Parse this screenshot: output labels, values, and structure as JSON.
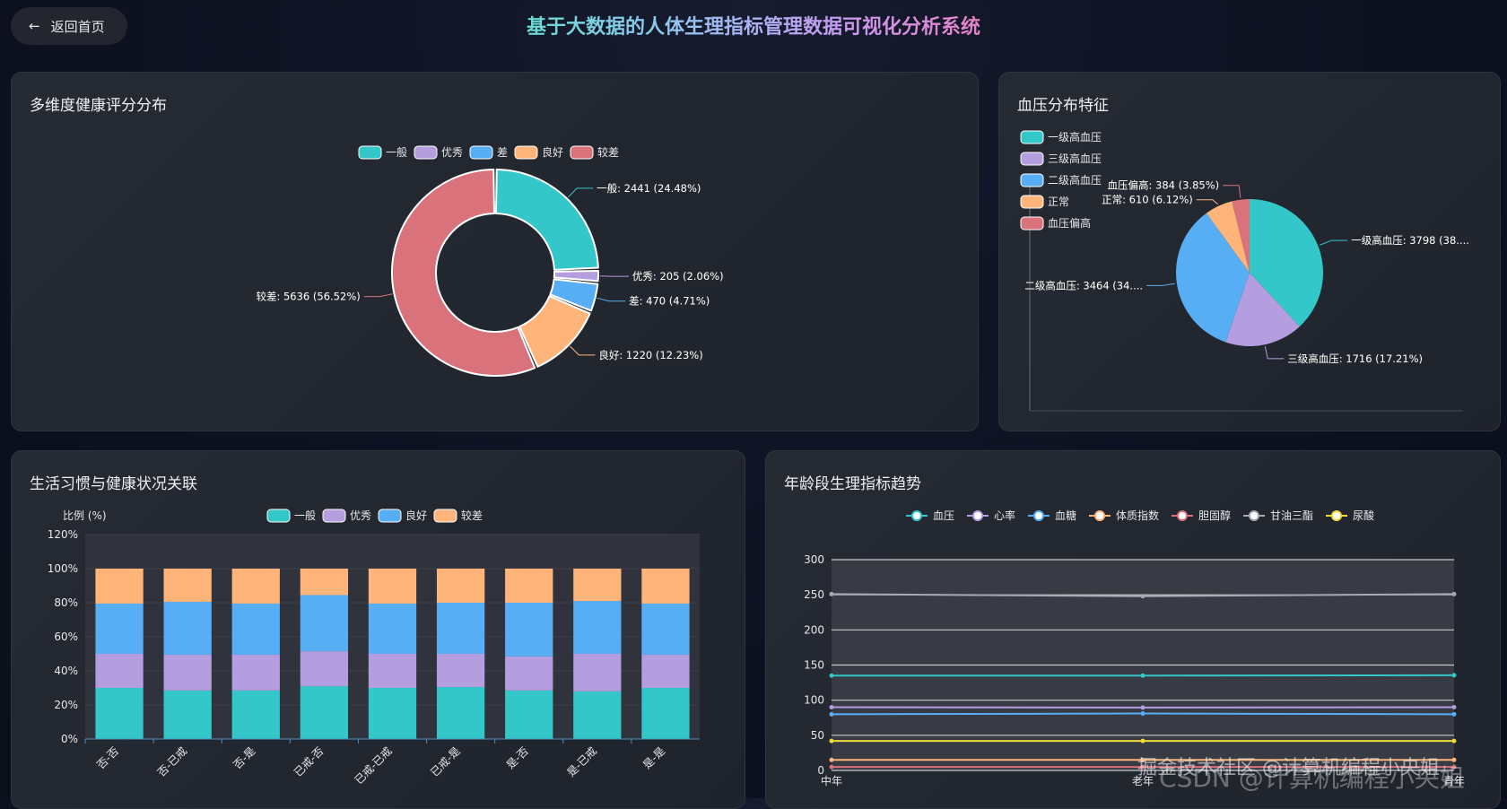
{
  "header": {
    "back_label": "返回首页",
    "back_icon": "arrow-left-icon",
    "title": "基于大数据的人体生理指标管理数据可视化分析系统"
  },
  "watermark": {
    "line1": "掘金技术社区 @计算机编程小央姐",
    "line2": "CSDN @计算机编程小央姐"
  },
  "chart_data": [
    {
      "id": "health-score",
      "type": "pie",
      "variant": "donut",
      "title": "多维度健康评分分布",
      "legend_position": "top",
      "slices": [
        {
          "name": "一般",
          "value": 2441,
          "label": "一般: 2441 (24.48%)",
          "color": "#33c7c9"
        },
        {
          "name": "优秀",
          "value": 205,
          "label": "优秀: 205 (2.06%)",
          "color": "#b49ee0"
        },
        {
          "name": "差",
          "value": 470,
          "label": "差: 470 (4.71%)",
          "color": "#58aef5"
        },
        {
          "name": "良好",
          "value": 1220,
          "label": "良好: 1220 (12.23%)",
          "color": "#ffb57a"
        },
        {
          "name": "较差",
          "value": 5636,
          "label": "较差: 5636 (56.52%)",
          "color": "#d9727a"
        }
      ]
    },
    {
      "id": "blood-pressure",
      "type": "pie",
      "title": "血压分布特征",
      "legend_position": "top-left",
      "slices": [
        {
          "name": "一级高血压",
          "value": 3798,
          "label": "一级高血压: 3798 (38....",
          "color": "#33c7c9"
        },
        {
          "name": "三级高血压",
          "value": 1716,
          "label": "三级高血压: 1716 (17.21%)",
          "color": "#b49ee0"
        },
        {
          "name": "二级高血压",
          "value": 3464,
          "label": "二级高血压: 3464 (34....",
          "color": "#58aef5"
        },
        {
          "name": "正常",
          "value": 610,
          "label": "正常: 610 (6.12%)",
          "color": "#ffb57a"
        },
        {
          "name": "血压偏高",
          "value": 384,
          "label": "血压偏高: 384 (3.85%)",
          "color": "#d9727a"
        }
      ]
    },
    {
      "id": "lifestyle",
      "type": "bar",
      "stacked": true,
      "title": "生活习惯与健康状况关联",
      "ylabel": "比例 (%)",
      "ylim": [
        0,
        120
      ],
      "yticks": [
        "0%",
        "20%",
        "40%",
        "60%",
        "80%",
        "100%",
        "120%"
      ],
      "grid": true,
      "legend_position": "top",
      "categories": [
        "否-否",
        "否-已戒",
        "否-是",
        "已戒-否",
        "已戒-已戒",
        "已戒-是",
        "是-否",
        "是-已戒",
        "是-是"
      ],
      "series": [
        {
          "name": "一般",
          "color": "#33c7c9",
          "values": [
            30,
            28.5,
            28.5,
            31,
            30,
            30.5,
            28.5,
            28,
            30
          ]
        },
        {
          "name": "优秀",
          "color": "#b49ee0",
          "values": [
            20,
            21,
            21,
            20.5,
            20,
            19.5,
            20,
            22,
            19.5
          ]
        },
        {
          "name": "良好",
          "color": "#58aef5",
          "values": [
            29.5,
            31,
            30,
            33,
            29.5,
            30,
            31.5,
            31,
            30
          ]
        },
        {
          "name": "较差",
          "color": "#ffb57a",
          "values": [
            20.5,
            19.5,
            20.5,
            15.5,
            20.5,
            20,
            20,
            19,
            20.5
          ]
        }
      ]
    },
    {
      "id": "age-trend",
      "type": "line",
      "title": "年龄段生理指标趋势",
      "ylim": [
        0,
        300
      ],
      "yticks": [
        "0",
        "50",
        "100",
        "150",
        "200",
        "250",
        "300"
      ],
      "grid": true,
      "legend_position": "top",
      "categories": [
        "中年",
        "老年",
        "青年"
      ],
      "series": [
        {
          "name": "血压",
          "color": "#33c7c9",
          "values": [
            135,
            135,
            135.5
          ]
        },
        {
          "name": "心率",
          "color": "#b49ee0",
          "values": [
            90,
            89.5,
            90
          ]
        },
        {
          "name": "血糖",
          "color": "#58aef5",
          "values": [
            80,
            81,
            80
          ]
        },
        {
          "name": "体质指数",
          "color": "#ffb57a",
          "values": [
            15,
            15,
            15
          ]
        },
        {
          "name": "胆固醇",
          "color": "#d9727a",
          "values": [
            5,
            5,
            5
          ]
        },
        {
          "name": "甘油三酯",
          "color": "#a7a9b4",
          "values": [
            251,
            248,
            251
          ]
        },
        {
          "name": "尿酸",
          "color": "#f1d93a",
          "values": [
            42,
            42,
            42
          ]
        }
      ]
    }
  ]
}
